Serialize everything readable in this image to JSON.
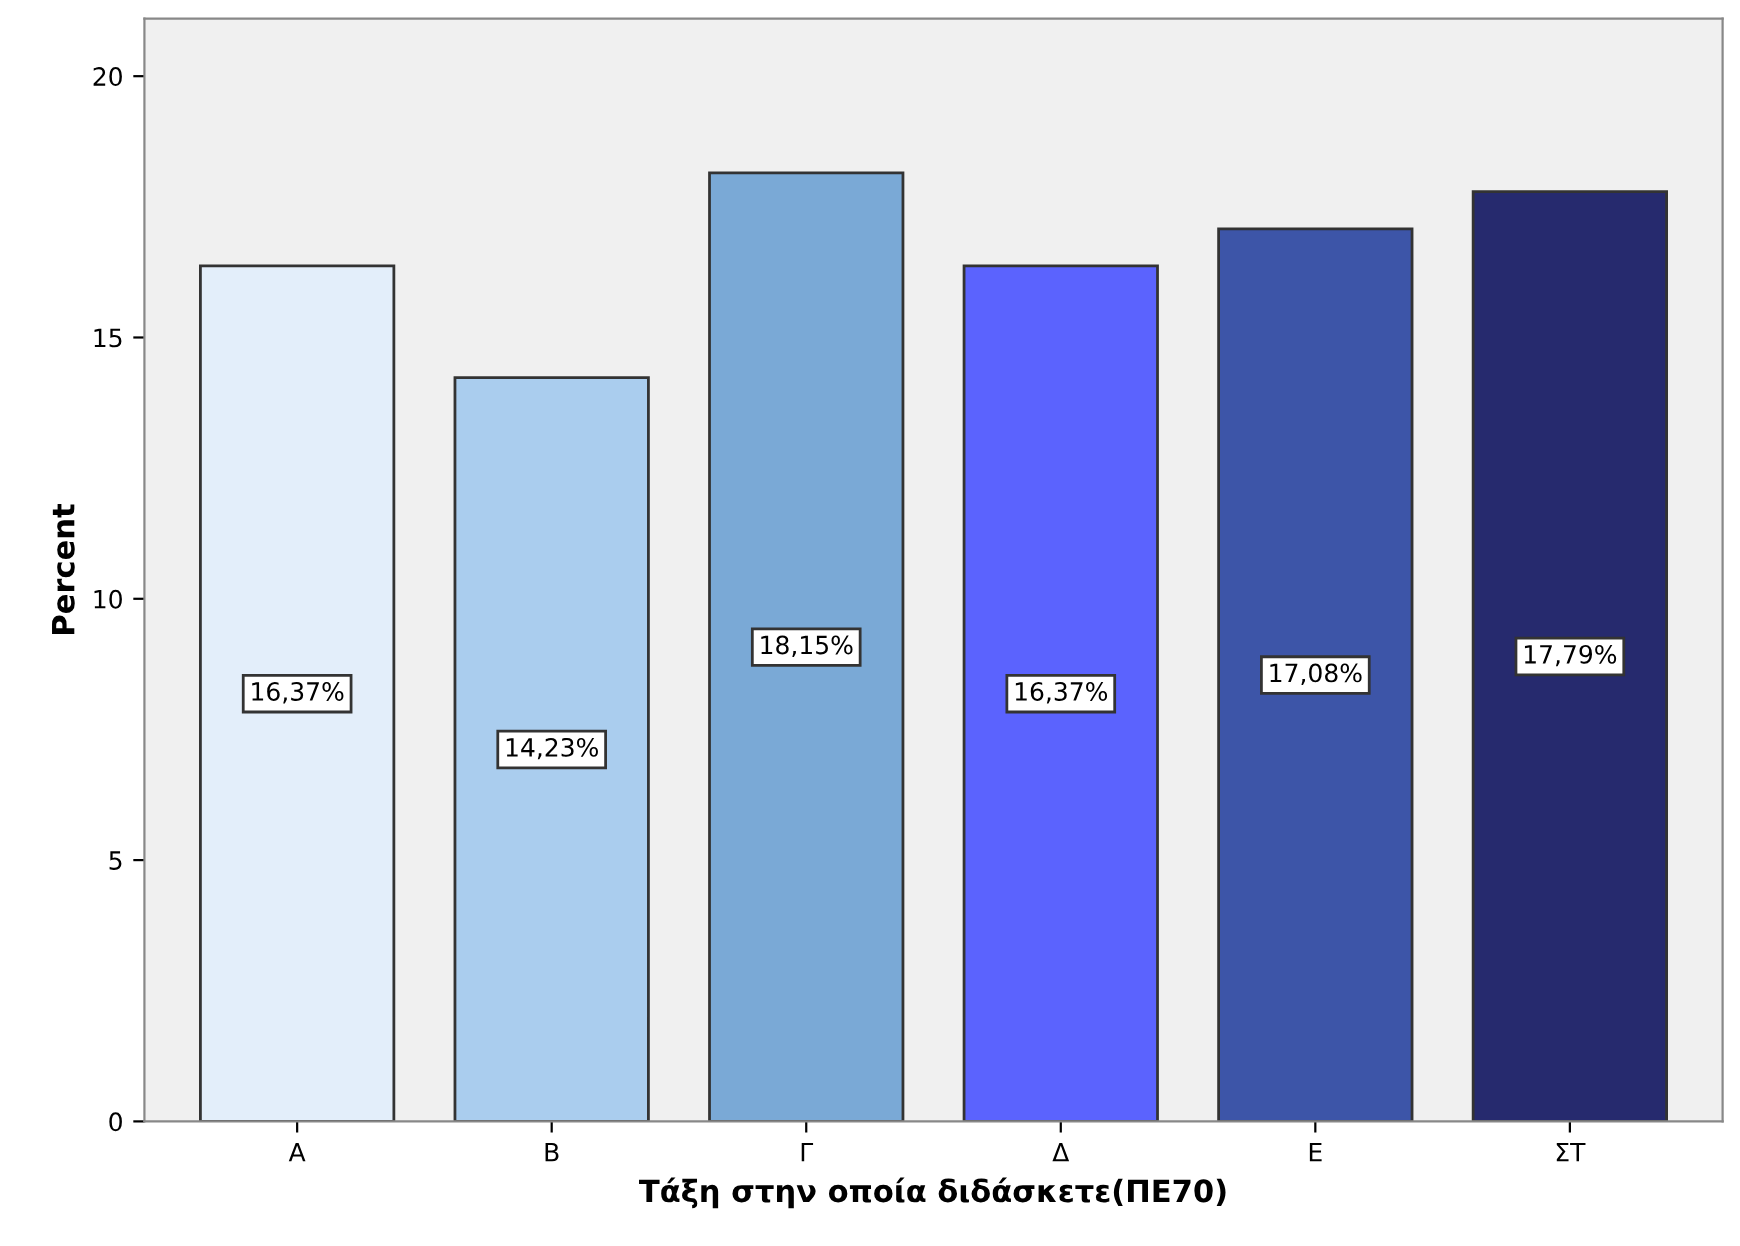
{
  "chart_data": {
    "type": "bar",
    "xlabel": "Τάξη στην οποία διδάσκετε(ΠΕ70)",
    "ylabel": "Percent",
    "categories": [
      "Α",
      "Β",
      "Γ",
      "Δ",
      "Ε",
      "ΣΤ"
    ],
    "values": [
      16.37,
      14.23,
      18.15,
      16.37,
      17.08,
      17.79
    ],
    "value_labels": [
      "16,37%",
      "14,23%",
      "18,15%",
      "16,37%",
      "17,08%",
      "17,79%"
    ],
    "colors": [
      "#e3eefa",
      "#aacdee",
      "#7aa9d6",
      "#5b63fe",
      "#3d55a8",
      "#262a6e"
    ],
    "ylim": [
      0,
      21.1
    ],
    "yticks": [
      0,
      5,
      10,
      15,
      20
    ],
    "grid": false,
    "legend": false
  }
}
